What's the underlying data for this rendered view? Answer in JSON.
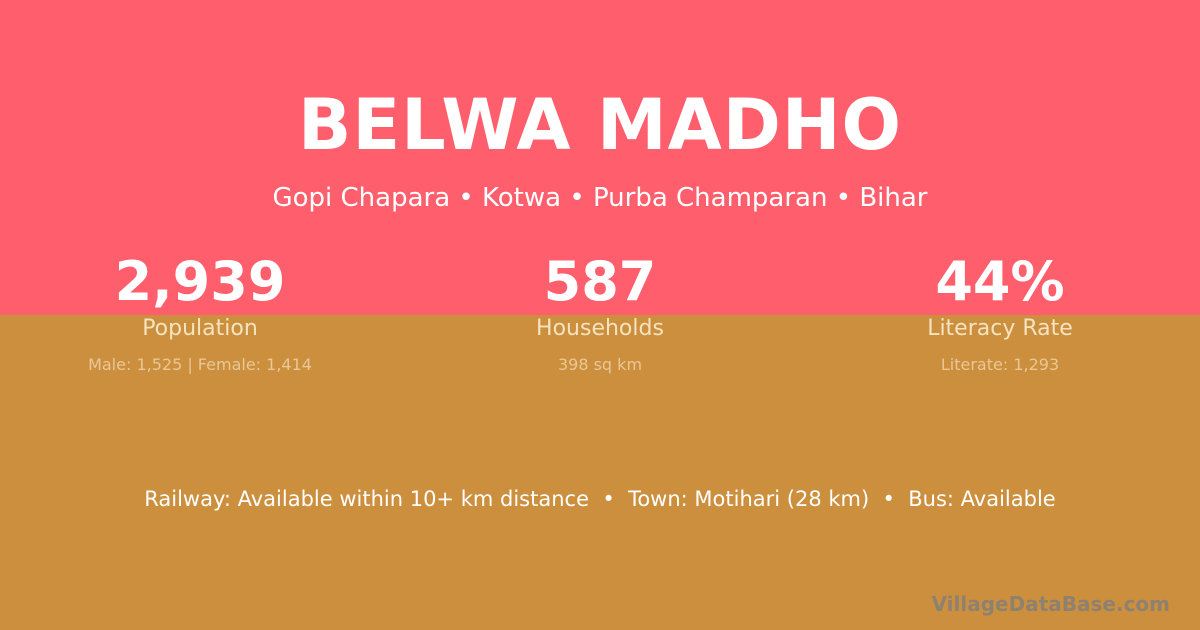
{
  "village": {
    "name": "BELWA MADHO",
    "location": "Gopi Chapara • Kotwa • Purba Champaran • Bihar"
  },
  "stats": [
    {
      "value": "2,939",
      "label": "Population",
      "detail": "Male: 1,525 | Female: 1,414"
    },
    {
      "value": "587",
      "label": "Households",
      "detail": "398 sq km"
    },
    {
      "value": "44%",
      "label": "Literacy Rate",
      "detail": "Literate: 1,293"
    }
  ],
  "transport": "Railway: Available within 10+ km distance  •  Town: Motihari (28 km)  •  Bus: Available",
  "watermark": "VillageDataBase.com",
  "colors": {
    "top": "#FF5E6C",
    "bottom": "#CC8F3E"
  }
}
